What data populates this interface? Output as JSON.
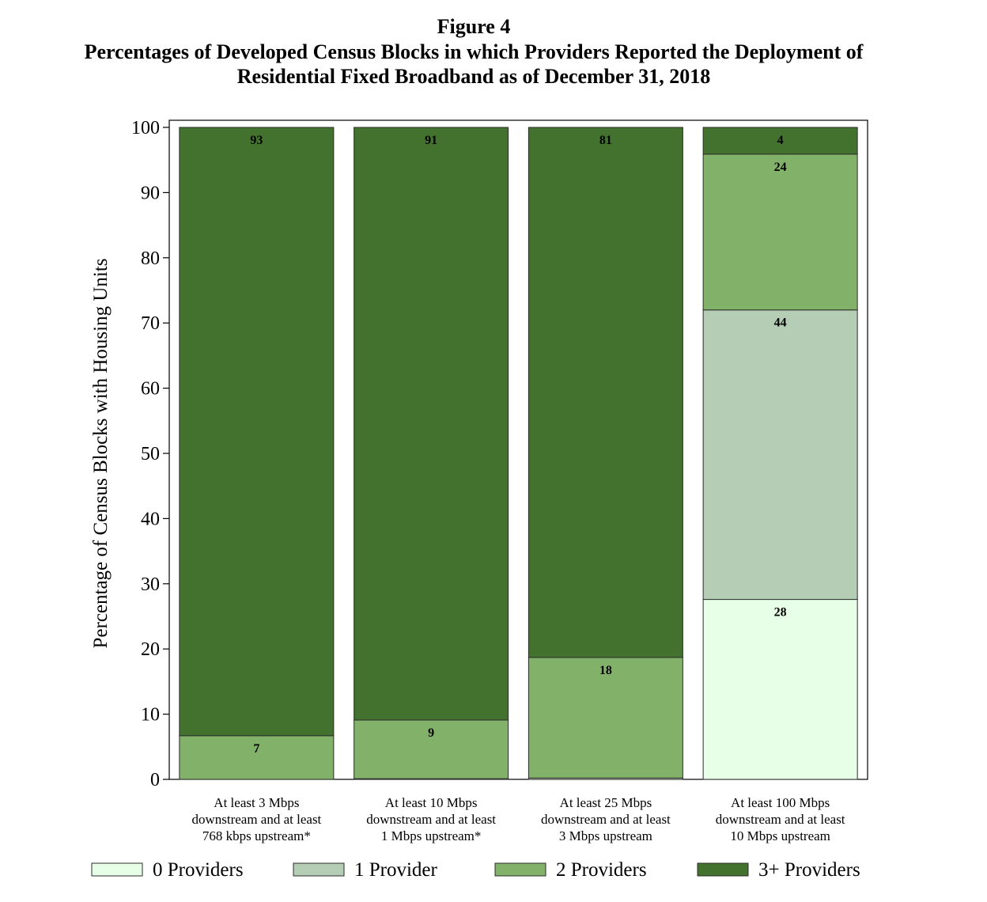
{
  "figure_label": "Figure 4",
  "title": "Percentages of Developed Census Blocks in which Providers Reported the Deployment of Residential Fixed Broadband as of December 31, 2018",
  "chart_data": {
    "type": "bar",
    "stacked": true,
    "ylabel": "Percentage of Census Blocks with Housing Units",
    "xlabel": "",
    "ylim": [
      0,
      100
    ],
    "yticks": [
      0,
      10,
      20,
      30,
      40,
      50,
      60,
      70,
      80,
      90,
      100
    ],
    "grid": false,
    "legend_position": "bottom",
    "categories": [
      [
        "At least 3 Mbps",
        "downstream and at least",
        "768 kbps upstream*"
      ],
      [
        "At least 10 Mbps",
        "downstream and at least",
        "1 Mbps upstream*"
      ],
      [
        "At least 25 Mbps",
        "downstream and at least",
        "3 Mbps upstream"
      ],
      [
        "At least 100 Mbps",
        "downstream and at least",
        "10 Mbps upstream"
      ]
    ],
    "series": [
      {
        "name": "0 Providers",
        "color": "#e6ffe6",
        "values": [
          0,
          0.1,
          0.2,
          27.6
        ],
        "labels": [
          "",
          "",
          "",
          "28"
        ]
      },
      {
        "name": "1 Provider",
        "color": "#b5ccb5",
        "values": [
          0,
          0,
          0,
          44.4
        ],
        "labels": [
          "",
          "",
          "",
          "44"
        ]
      },
      {
        "name": "2 Providers",
        "color": "#82b26a",
        "values": [
          6.7,
          9.0,
          18.5,
          23.9
        ],
        "labels": [
          "7",
          "9",
          "18",
          "24"
        ]
      },
      {
        "name": "3+ Providers",
        "color": "#42722d",
        "values": [
          93.3,
          90.9,
          81.3,
          4.1
        ],
        "labels": [
          "93",
          "91",
          "81",
          "4"
        ]
      }
    ]
  }
}
